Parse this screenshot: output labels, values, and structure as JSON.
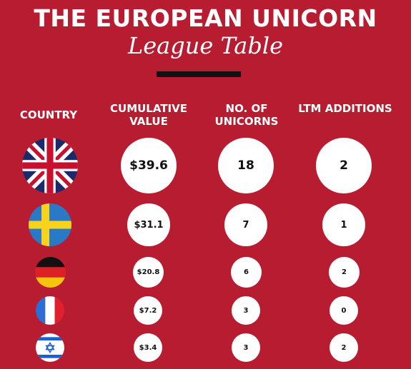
{
  "header": {
    "title": "THE EUROPEAN UNICORN",
    "subtitle": "League Table"
  },
  "columns": {
    "country": "COUNTRY",
    "cumulative_value": "CUMULATIVE VALUE",
    "unicorns": "NO. OF UNICORNS",
    "ltm": "LTM ADDITIONS"
  },
  "rows": [
    {
      "flag": "uk-flag-icon",
      "value": "$39.6",
      "unicorns": "18",
      "ltm": "2"
    },
    {
      "flag": "sweden-flag-icon",
      "value": "$31.1",
      "unicorns": "7",
      "ltm": "1"
    },
    {
      "flag": "germany-flag-icon",
      "value": "$20.8",
      "unicorns": "6",
      "ltm": "2"
    },
    {
      "flag": "france-flag-icon",
      "value": "$7.2",
      "unicorns": "3",
      "ltm": "0"
    },
    {
      "flag": "israel-flag-icon",
      "value": "$3.4",
      "unicorns": "3",
      "ltm": "2"
    }
  ],
  "colors": {
    "background": "#b81c31",
    "circle": "#ffffff",
    "rule": "#111111"
  }
}
